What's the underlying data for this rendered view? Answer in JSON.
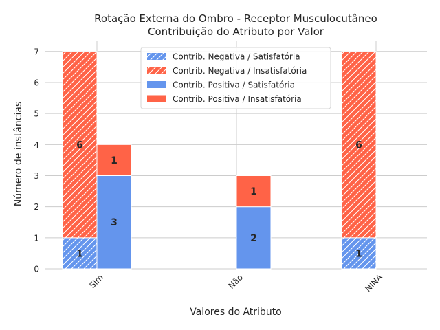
{
  "chart_data": {
    "type": "bar",
    "title_line1": "Rotação Externa do Ombro - Receptor Musculocutâneo",
    "title_line2": "Contribuição do Atributo por Valor",
    "xlabel": "Valores do Atributo",
    "ylabel": "Número de instâncias",
    "categories": [
      "Sim",
      "Não",
      "NINA"
    ],
    "ylim": [
      0,
      7.35
    ],
    "yticks": [
      "0",
      "1",
      "2",
      "3",
      "4",
      "5",
      "6",
      "7"
    ],
    "grid": true,
    "legend_position": "top-center",
    "groups": [
      {
        "name": "Contrib. Negativa",
        "hatched": true,
        "stack": [
          {
            "name": "Contrib. Negativa / Satisfatória",
            "color": "#6495ed",
            "values": [
              1,
              0,
              1
            ]
          },
          {
            "name": "Contrib. Negativa / Insatisfatória",
            "color": "#ff6347",
            "values": [
              6,
              0,
              6
            ]
          }
        ]
      },
      {
        "name": "Contrib. Positiva",
        "hatched": false,
        "stack": [
          {
            "name": "Contrib. Positiva / Satisfatória",
            "color": "#6495ed",
            "values": [
              3,
              2,
              0
            ]
          },
          {
            "name": "Contrib. Positiva / Insatisfatória",
            "color": "#ff6347",
            "values": [
              1,
              1,
              0
            ]
          }
        ]
      }
    ]
  }
}
